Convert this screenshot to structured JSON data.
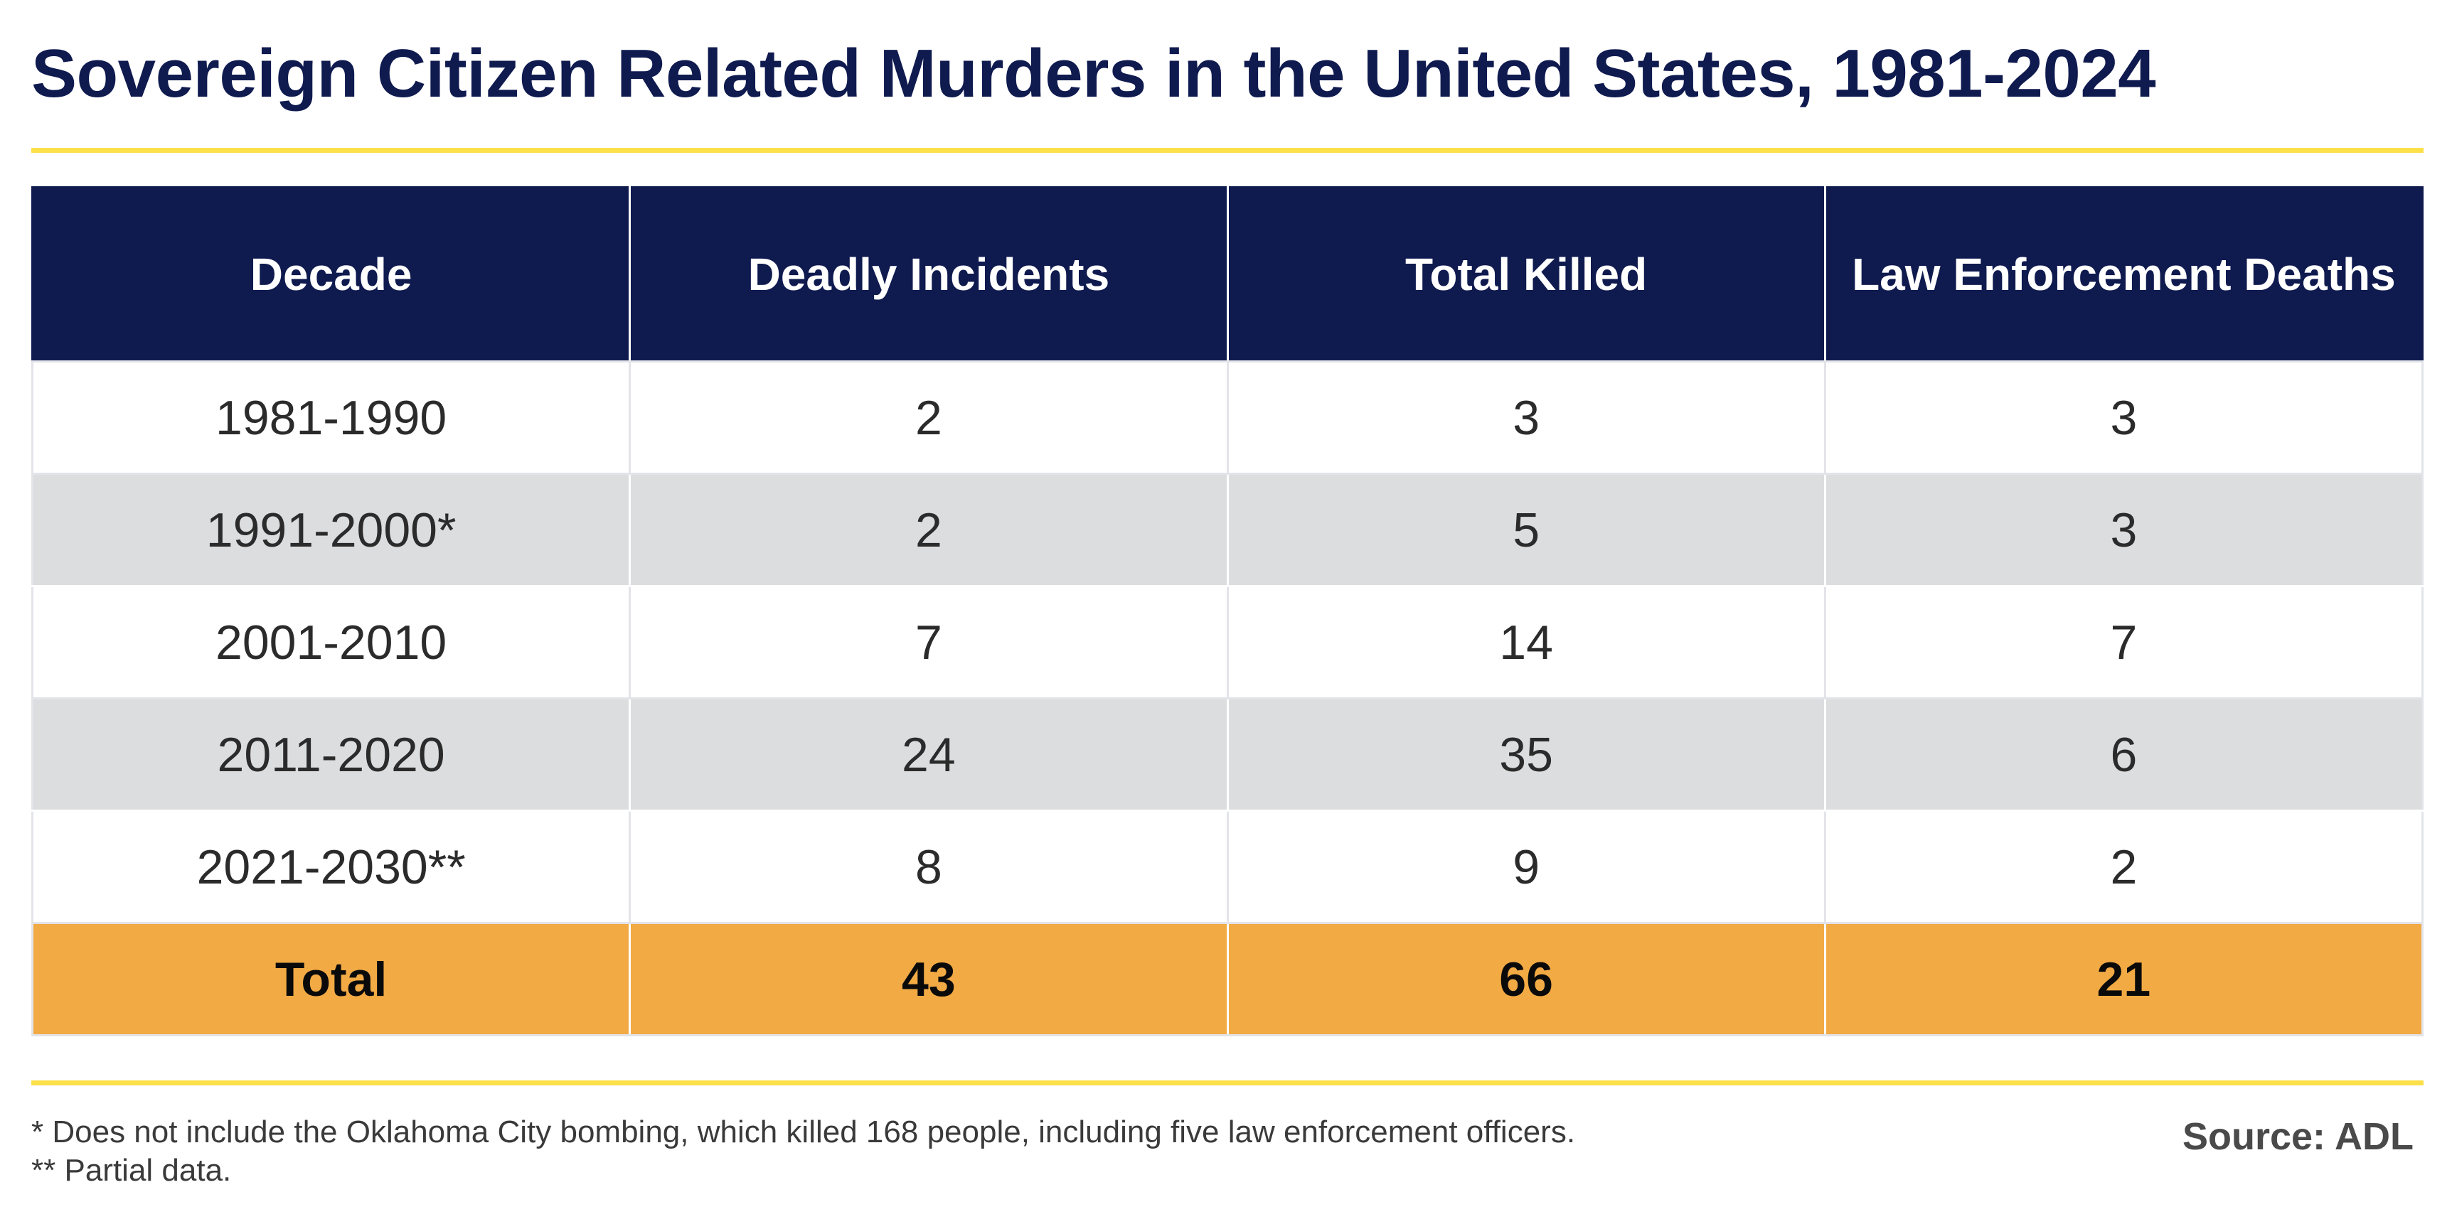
{
  "title": "Sovereign Citizen Related Murders in the United States, 1981-2024",
  "colors": {
    "header_bg": "#0f1a4f",
    "title_text": "#0f1a4f",
    "rule": "#fce04a",
    "row_alt_bg": "#dcdddf",
    "total_row_bg": "#f2aa44"
  },
  "table": {
    "headers": [
      "Decade",
      "Deadly Incidents",
      "Total Killed",
      "Law Enforcement Deaths"
    ],
    "rows": [
      [
        "1981-1990",
        "2",
        "3",
        "3"
      ],
      [
        "1991-2000*",
        "2",
        "5",
        "3"
      ],
      [
        "2001-2010",
        "7",
        "14",
        "7"
      ],
      [
        "2011-2020",
        "24",
        "35",
        "6"
      ],
      [
        "2021-2030**",
        "8",
        "9",
        "2"
      ]
    ],
    "total": [
      "Total",
      "43",
      "66",
      "21"
    ]
  },
  "footnotes": [
    "* Does not include the Oklahoma City bombing, which killed 168 people, including five law enforcement officers.",
    "** Partial data."
  ],
  "source": "Source: ADL"
}
